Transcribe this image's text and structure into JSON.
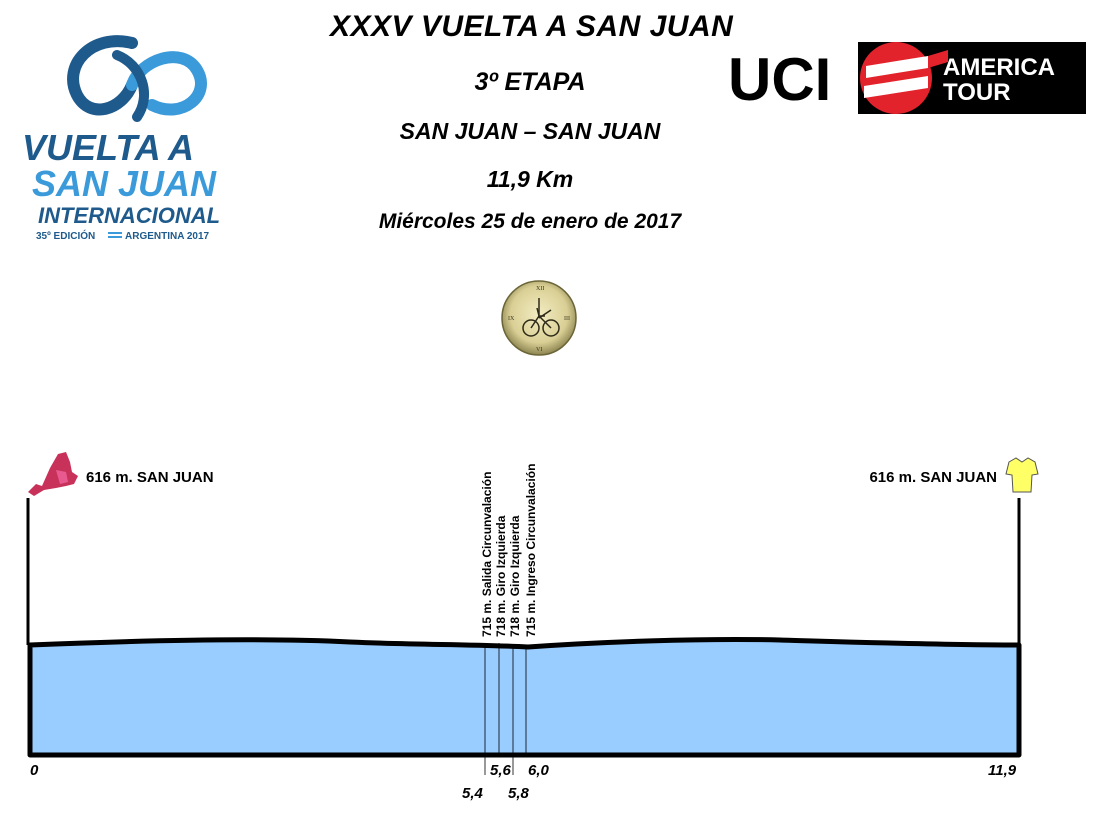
{
  "header": {
    "title": "XXXV VUELTA A SAN JUAN",
    "stage": "3º ETAPA",
    "route": "SAN JUAN – SAN JUAN",
    "distance": "11,9 Km",
    "date": "Miércoles 25 de enero de 2017"
  },
  "event_logo": {
    "line1": "VUELTA A",
    "line2": "SAN JUAN",
    "line3": "INTERNACIONAL",
    "line4_left": "35º EDICIÓN",
    "line4_right": "ARGENTINA 2017",
    "color_dark": "#1e5a8c",
    "color_light": "#3b9ad9"
  },
  "uci_logo": {
    "uci_text": "UCI",
    "box_line1": "AMERICA",
    "box_line2": "TOUR",
    "accent": "#e3232c"
  },
  "profile": {
    "fill_color": "#99ccff",
    "start": {
      "altitude": 616,
      "label": "616 m. SAN JUAN",
      "km": "0",
      "icon": "start-flag-icon",
      "icon_color": "#c8325a"
    },
    "finish": {
      "altitude": 616,
      "label": "616 m. SAN JUAN",
      "km": "11,9",
      "icon": "leader-jersey-icon",
      "icon_color": "#ffff66"
    },
    "waypoints": [
      {
        "label": "715 m. Salida Circunvalación",
        "km": "5,4"
      },
      {
        "label": "718 m. Giro Izquierda",
        "km": "5,6"
      },
      {
        "label": "718 m. Giro Izquierda",
        "km": "5,8"
      },
      {
        "label": "715 m. Ingreso Circunvalación",
        "km": "6,0"
      }
    ]
  }
}
